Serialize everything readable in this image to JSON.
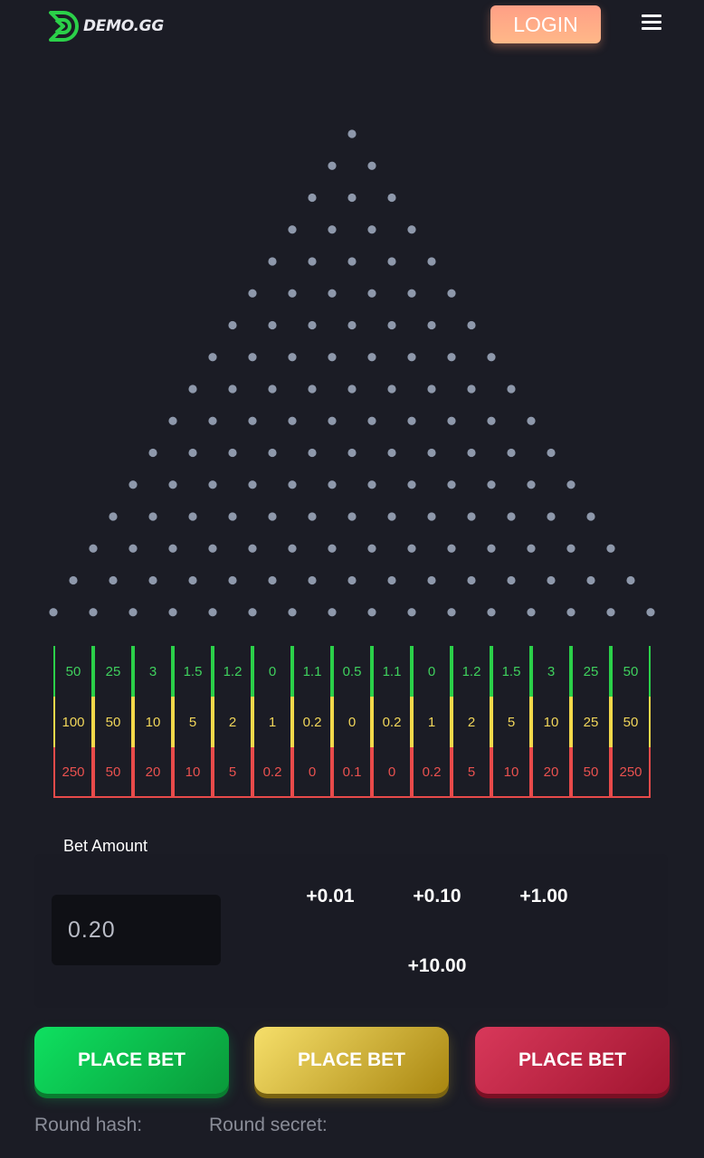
{
  "header": {
    "logo_text": "DEMO.GG",
    "login_label": "LOGIN",
    "menu_icon": "hamburger-menu-icon",
    "brand_color": "#2bd049"
  },
  "board": {
    "rows": 16,
    "peg_color": "#8e98ab",
    "multipliers": {
      "green": [
        "50",
        "25",
        "3",
        "1.5",
        "1.2",
        "0",
        "1.1",
        "0.5",
        "1.1",
        "0",
        "1.2",
        "1.5",
        "3",
        "25",
        "50"
      ],
      "yellow": [
        "100",
        "50",
        "10",
        "5",
        "2",
        "1",
        "0.2",
        "0",
        "0.2",
        "1",
        "2",
        "5",
        "10",
        "25",
        "50"
      ],
      "red": [
        "250",
        "50",
        "20",
        "10",
        "5",
        "0.2",
        "0",
        "0.1",
        "0",
        "0.2",
        "5",
        "10",
        "20",
        "50",
        "250"
      ]
    },
    "colors": {
      "green": "#2bd049",
      "yellow": "#f3d84a",
      "red": "#e84a4a"
    }
  },
  "bet": {
    "label": "Bet Amount",
    "amount": "0.20",
    "increments": [
      "+0.01",
      "+0.10",
      "+1.00",
      "+10.00"
    ]
  },
  "buttons": {
    "place_green": "PLACE BET",
    "place_yellow": "PLACE BET",
    "place_red": "PLACE BET"
  },
  "footer": {
    "round_hash_label": "Round hash:",
    "round_secret_label": "Round secret:"
  }
}
